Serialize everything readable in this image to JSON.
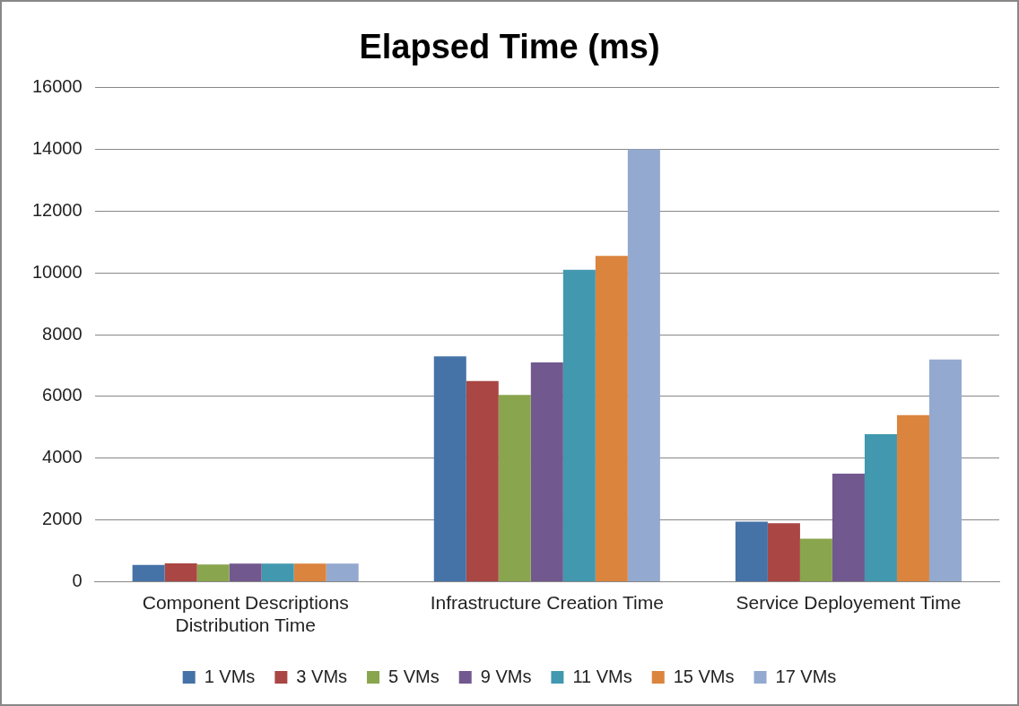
{
  "chart_data": {
    "type": "bar",
    "title": "Elapsed Time (ms)",
    "categories": [
      "Component Descriptions Distribution Time",
      "Infrastructure Creation Time",
      "Service Deployement Time"
    ],
    "series": [
      {
        "name": "1 VMs",
        "color": "#4572a7",
        "values": [
          550,
          7300,
          1950
        ]
      },
      {
        "name": "3 VMs",
        "color": "#aa4643",
        "values": [
          600,
          6500,
          1900
        ]
      },
      {
        "name": "5 VMs",
        "color": "#89a54e",
        "values": [
          560,
          6050,
          1400
        ]
      },
      {
        "name": "9 VMs",
        "color": "#71588f",
        "values": [
          590,
          7100,
          3500
        ]
      },
      {
        "name": "11 VMs",
        "color": "#4198af",
        "values": [
          590,
          10100,
          4780
        ]
      },
      {
        "name": "15 VMs",
        "color": "#db843d",
        "values": [
          590,
          10550,
          5400
        ]
      },
      {
        "name": "17 VMs",
        "color": "#93a9cf",
        "values": [
          590,
          14000,
          7200
        ]
      }
    ],
    "ylim": [
      0,
      16000
    ],
    "yticks": [
      0,
      2000,
      4000,
      6000,
      8000,
      10000,
      12000,
      14000,
      16000
    ],
    "grid": "y",
    "legend": "bottom"
  }
}
